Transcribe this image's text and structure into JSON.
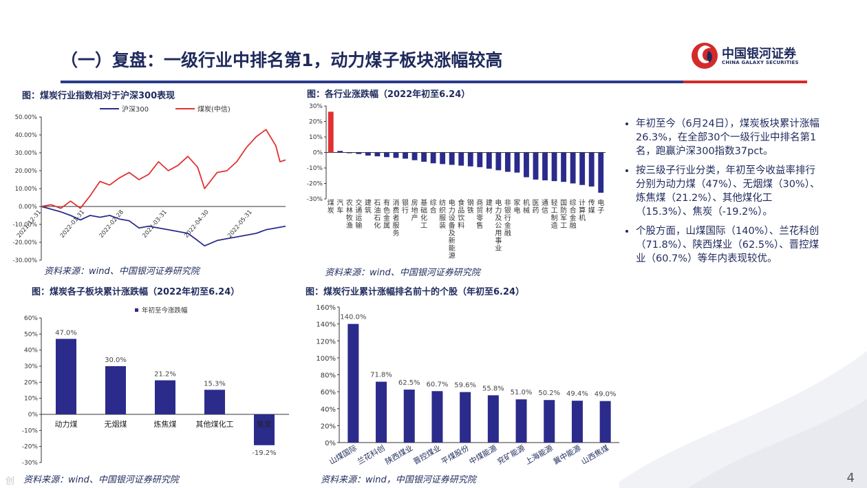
{
  "title": "（一）复盘：一级行业中排名第1，动力煤子板块涨幅较高",
  "logo": {
    "cn": "中国银河证券",
    "en": "CHINA GALAXY SECURITIES"
  },
  "colors": {
    "navy": "#2b2b8c",
    "red": "#e03131",
    "title": "#1f2a5c",
    "accent_red": "#d42a2a"
  },
  "watermark": "创",
  "page_number": "4",
  "bullets": [
    "年初至今（6月24日），煤炭板块累计涨幅26.3%，在全部30个一级行业中排名第1名，跑赢沪深300指数37pct。",
    "按三级子行业分类，年初至今收益率排行分别为动力煤（47%）、无烟煤（30%）、炼焦煤（21.2%）、其他煤化工（15.3%）、焦炭（-19.2%）。",
    "个股方面，山煤国际（140%）、兰花科创（71.8%）、陕西煤业（62.5%）、晋控煤业（60.7%）等年内表现较优。"
  ],
  "chart_data": [
    {
      "id": "line",
      "type": "line",
      "title": "图：煤炭行业指数相对于沪深300表现",
      "source": "资料来源：wind、中国银河证券研究院",
      "ylim": [
        -30,
        50
      ],
      "y_ticks": [
        "50.00%",
        "40.00%",
        "30.00%",
        "20.00%",
        "10.00%",
        "0.00%",
        "-10.00%",
        "-20.00%",
        "-30.00%"
      ],
      "x_ticks": [
        "2021-12-31",
        "2022-01-31",
        "2022-02-28",
        "2022-03-31",
        "2022-04-30",
        "2022-05-31"
      ],
      "x_range": [
        "2021-12-31",
        "2022-06-24"
      ],
      "series": [
        {
          "name": "沪深300",
          "color": "#2b2b8c",
          "x": [
            "2021-12-31",
            "2022-01-07",
            "2022-01-14",
            "2022-01-21",
            "2022-01-28",
            "2022-02-04",
            "2022-02-11",
            "2022-02-18",
            "2022-02-25",
            "2022-03-04",
            "2022-03-11",
            "2022-03-18",
            "2022-03-25",
            "2022-04-01",
            "2022-04-08",
            "2022-04-15",
            "2022-04-22",
            "2022-04-27",
            "2022-05-06",
            "2022-05-13",
            "2022-05-20",
            "2022-05-27",
            "2022-06-03",
            "2022-06-10",
            "2022-06-17",
            "2022-06-24"
          ],
          "y": [
            0,
            -1.5,
            -3,
            -5,
            -7.5,
            -5,
            -6,
            -5,
            -7,
            -8,
            -12,
            -11,
            -12,
            -13,
            -14,
            -15,
            -19,
            -22,
            -19,
            -18,
            -17,
            -16,
            -15,
            -13,
            -12,
            -11
          ]
        },
        {
          "name": "煤炭(中信)",
          "color": "#e03131",
          "x": [
            "2021-12-31",
            "2022-01-07",
            "2022-01-14",
            "2022-01-21",
            "2022-01-28",
            "2022-02-04",
            "2022-02-11",
            "2022-02-18",
            "2022-02-25",
            "2022-03-04",
            "2022-03-11",
            "2022-03-18",
            "2022-03-25",
            "2022-04-01",
            "2022-04-08",
            "2022-04-15",
            "2022-04-22",
            "2022-04-27",
            "2022-05-06",
            "2022-05-13",
            "2022-05-20",
            "2022-05-27",
            "2022-06-03",
            "2022-06-10",
            "2022-06-17",
            "2022-06-20",
            "2022-06-24"
          ],
          "y": [
            0,
            1,
            -1,
            3,
            -1,
            6,
            14,
            12,
            16,
            19,
            15,
            18,
            25,
            20,
            23,
            28,
            22,
            10,
            19,
            20,
            25,
            33,
            39,
            43,
            34,
            25,
            26
          ]
        }
      ]
    },
    {
      "id": "industry",
      "type": "bar",
      "title": "图：各行业涨跌幅（2022年初至6.24）",
      "ylim": [
        -30,
        30
      ],
      "y_ticks": [
        "30%",
        "20%",
        "10%",
        "0%",
        "-10%",
        "-20%",
        "-30%"
      ],
      "categories": [
        "煤炭",
        "汽车",
        "农林牧渔",
        "交通运输",
        "建筑",
        "石油石化",
        "有色金属",
        "消费者服务",
        "银行",
        "房地产",
        "基础化工",
        "综合",
        "纺织服装",
        "电力设备及新能源",
        "食品饮料",
        "钢铁",
        "商贸零售",
        "建材",
        "电力及公用事业",
        "非银行金融",
        "家电",
        "机械",
        "医药",
        "通信",
        "轻工制造",
        "国防军工",
        "综合金融",
        "计算机",
        "传媒",
        "电子"
      ],
      "highlight": [
        "煤炭"
      ],
      "values": [
        26.3,
        1.0,
        -0.5,
        -1.0,
        -2.0,
        -2.5,
        -3.0,
        -3.5,
        -4.0,
        -5.0,
        -6.0,
        -7.0,
        -7.5,
        -8.0,
        -8.5,
        -9.0,
        -9.5,
        -10.5,
        -11.5,
        -12.5,
        -13.0,
        -16.0,
        -17.5,
        -18.0,
        -18.5,
        -19.0,
        -20.0,
        -21.0,
        -22.0,
        -26.0
      ],
      "source": "资料来源：wind、中国银河证券研究院"
    },
    {
      "id": "sub",
      "type": "bar",
      "title": "图：煤炭各子板块累计涨跌幅（2022年初至6.24）",
      "legend": "年初至今涨跌幅",
      "ylim": [
        -30,
        60
      ],
      "y_ticks": [
        "60%",
        "50%",
        "40%",
        "30%",
        "20%",
        "10%",
        "0%",
        "-10%",
        "-20%",
        "-30%"
      ],
      "categories": [
        "动力煤",
        "无烟煤",
        "炼焦煤",
        "其他煤化工",
        "焦炭"
      ],
      "values": [
        47.0,
        30.0,
        21.2,
        15.3,
        -19.2
      ],
      "labels": [
        "47.0%",
        "30.0%",
        "21.2%",
        "15.3%",
        "-19.2%"
      ],
      "source": "资料来源：wind、中国银河证券研究院"
    },
    {
      "id": "stocks",
      "type": "bar",
      "title": "图：煤炭行业累计涨幅排名前十的个股（年初至6.24）",
      "ylim": [
        0,
        160
      ],
      "y_ticks": [
        "160%",
        "140%",
        "120%",
        "100%",
        "80%",
        "60%",
        "40%",
        "20%",
        "0%"
      ],
      "categories": [
        "山煤国际",
        "兰花科创",
        "陕西煤业",
        "晋控煤业",
        "平煤股份",
        "中煤能源",
        "兖矿能源",
        "上海能源",
        "冀中能源",
        "山西焦煤"
      ],
      "values": [
        140.0,
        71.8,
        62.5,
        60.7,
        59.6,
        55.8,
        51.0,
        50.2,
        49.4,
        49.0
      ],
      "labels": [
        "140.0%",
        "71.8%",
        "62.5%",
        "60.7%",
        "59.6%",
        "55.8%",
        "51.0%",
        "50.2%",
        "49.4%",
        "49.0%"
      ],
      "source": "资料来源：wind，中国银河证券研究院"
    }
  ]
}
